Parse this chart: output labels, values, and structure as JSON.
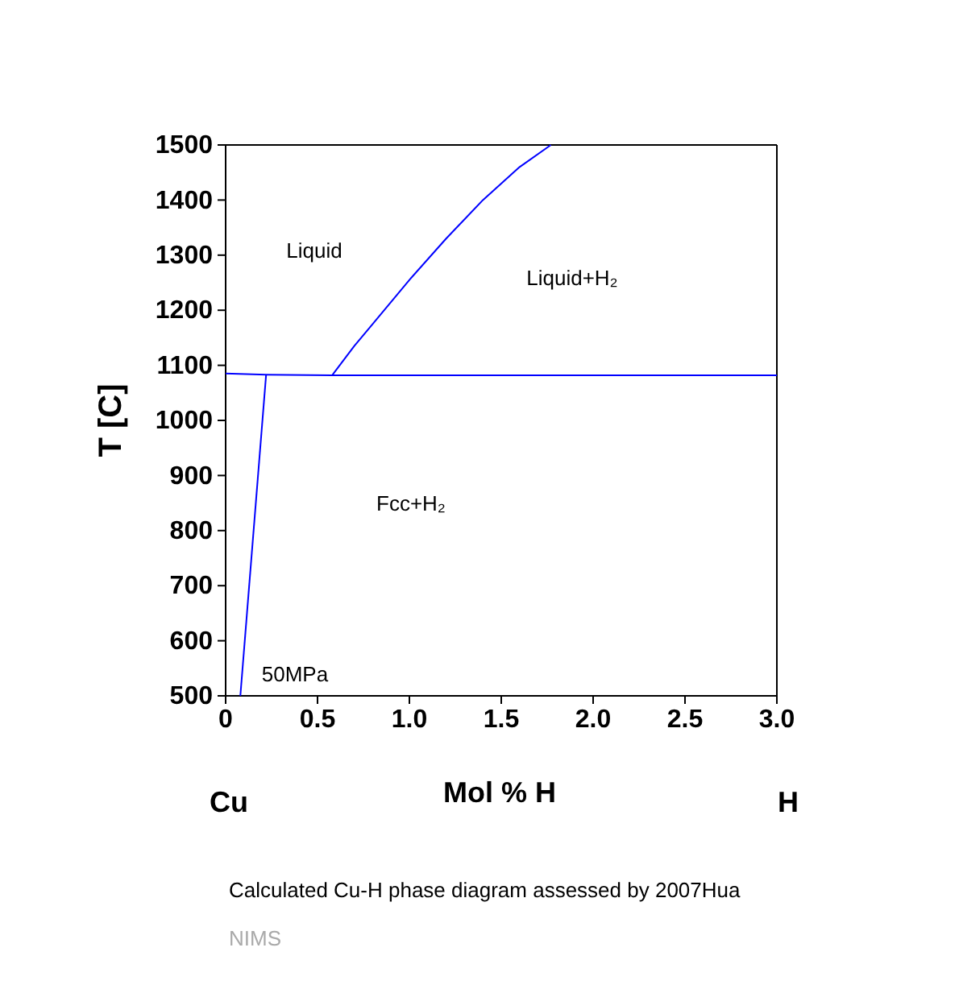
{
  "chart_data": {
    "type": "line",
    "xlabel": "Mol % H",
    "ylabel": "T [C]",
    "xlim": [
      0,
      3
    ],
    "ylim": [
      500,
      1500
    ],
    "xticks": [
      0,
      0.5,
      {
        "value": 1,
        "label": "1.0"
      },
      1.5,
      {
        "value": 2,
        "label": "2.0"
      },
      2.5,
      {
        "value": 3,
        "label": "3.0"
      }
    ],
    "yticks": [
      500,
      600,
      700,
      800,
      900,
      1000,
      1100,
      1200,
      1300,
      1400,
      1500
    ],
    "grid": false,
    "marker": "none",
    "line_style": "solid",
    "series": [
      {
        "color": "#0000ff",
        "x": [
          0.58,
          0.7,
          0.8,
          1.0,
          1.2,
          1.4,
          1.6,
          1.77
        ],
        "values": [
          1082,
          1135,
          1175,
          1255,
          1330,
          1400,
          1460,
          1500
        ]
      },
      {
        "color": "#0000ff",
        "x": [
          0,
          0.22,
          0.58,
          3.0
        ],
        "values": [
          1085,
          1083,
          1082,
          1082
        ]
      },
      {
        "color": "#0000ff",
        "x": [
          0.22,
          0.08
        ],
        "values": [
          1082,
          500
        ]
      }
    ],
    "annotations": [
      "Liquid",
      "Liquid+H₂",
      "Fcc+H₂",
      "50MPa",
      "Cu",
      "H",
      "Calculated Cu-H phase diagram assessed by 2007Hua",
      "NIMS"
    ]
  }
}
